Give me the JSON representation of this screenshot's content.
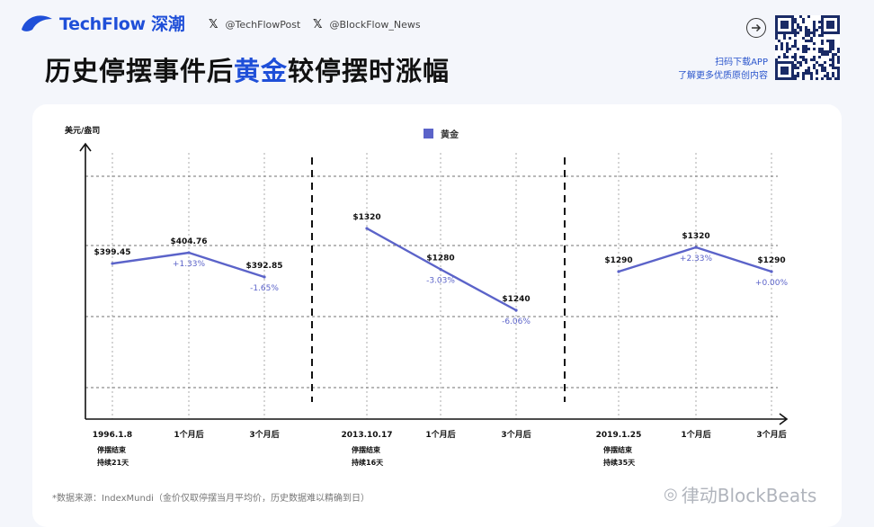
{
  "brand": {
    "name": "TechFlow 深潮"
  },
  "social": [
    {
      "icon": "x-icon",
      "handle": "@TechFlowPost"
    },
    {
      "icon": "x-icon",
      "handle": "@BlockFlow_News"
    }
  ],
  "title": {
    "part1": "历史停摆事件后",
    "highlight": "黄金",
    "part2": "较停摆时涨幅"
  },
  "promo": {
    "line1": "扫码下载APP",
    "line2": "了解更多优质原创内容"
  },
  "footer": {
    "source": "*数据来源：IndexMundi（金价仅取停摆当月平均价，历史数据难以精确到日）"
  },
  "watermark": {
    "text": "律动BlockBeats"
  },
  "colors": {
    "accent": "#1f4fd8",
    "series": "#5b63c9"
  },
  "chart_data": {
    "type": "line",
    "ylabel": "美元/盎司",
    "legend": {
      "label": "黄金",
      "placement": "top-center"
    },
    "grid": true,
    "x_labels": [
      "1996.1.8",
      "1个月后",
      "3个月后",
      "2013.10.17",
      "1个月后",
      "3个月后",
      "2019.1.25",
      "1个月后",
      "3个月后"
    ],
    "events": [
      {
        "start": "1996.1.8",
        "status": "停摆结束",
        "duration": "持续21天",
        "points": [
          {
            "x": "1996.1.8",
            "price": 399.45,
            "label": "$399.45",
            "change": ""
          },
          {
            "x": "1个月后",
            "price": 404.76,
            "label": "$404.76",
            "change": "+1.33%"
          },
          {
            "x": "3个月后",
            "price": 392.85,
            "label": "$392.85",
            "change": "-1.65%"
          }
        ]
      },
      {
        "start": "2013.10.17",
        "status": "停摆结束",
        "duration": "持续16天",
        "points": [
          {
            "x": "2013.10.17",
            "price": 1320,
            "label": "$1320",
            "change": ""
          },
          {
            "x": "1个月后",
            "price": 1280,
            "label": "$1280",
            "change": "-3.03%"
          },
          {
            "x": "3个月后",
            "price": 1240,
            "label": "$1240",
            "change": "-6.06%"
          }
        ]
      },
      {
        "start": "2019.1.25",
        "status": "停摆结束",
        "duration": "持续35天",
        "points": [
          {
            "x": "2019.1.25",
            "price": 1290,
            "label": "$1290",
            "change": ""
          },
          {
            "x": "1个月后",
            "price": 1320,
            "label": "$1320",
            "change": "+2.33%"
          },
          {
            "x": "3个月后",
            "price": 1290,
            "label": "$1290",
            "change": "+0.00%"
          }
        ]
      }
    ]
  }
}
